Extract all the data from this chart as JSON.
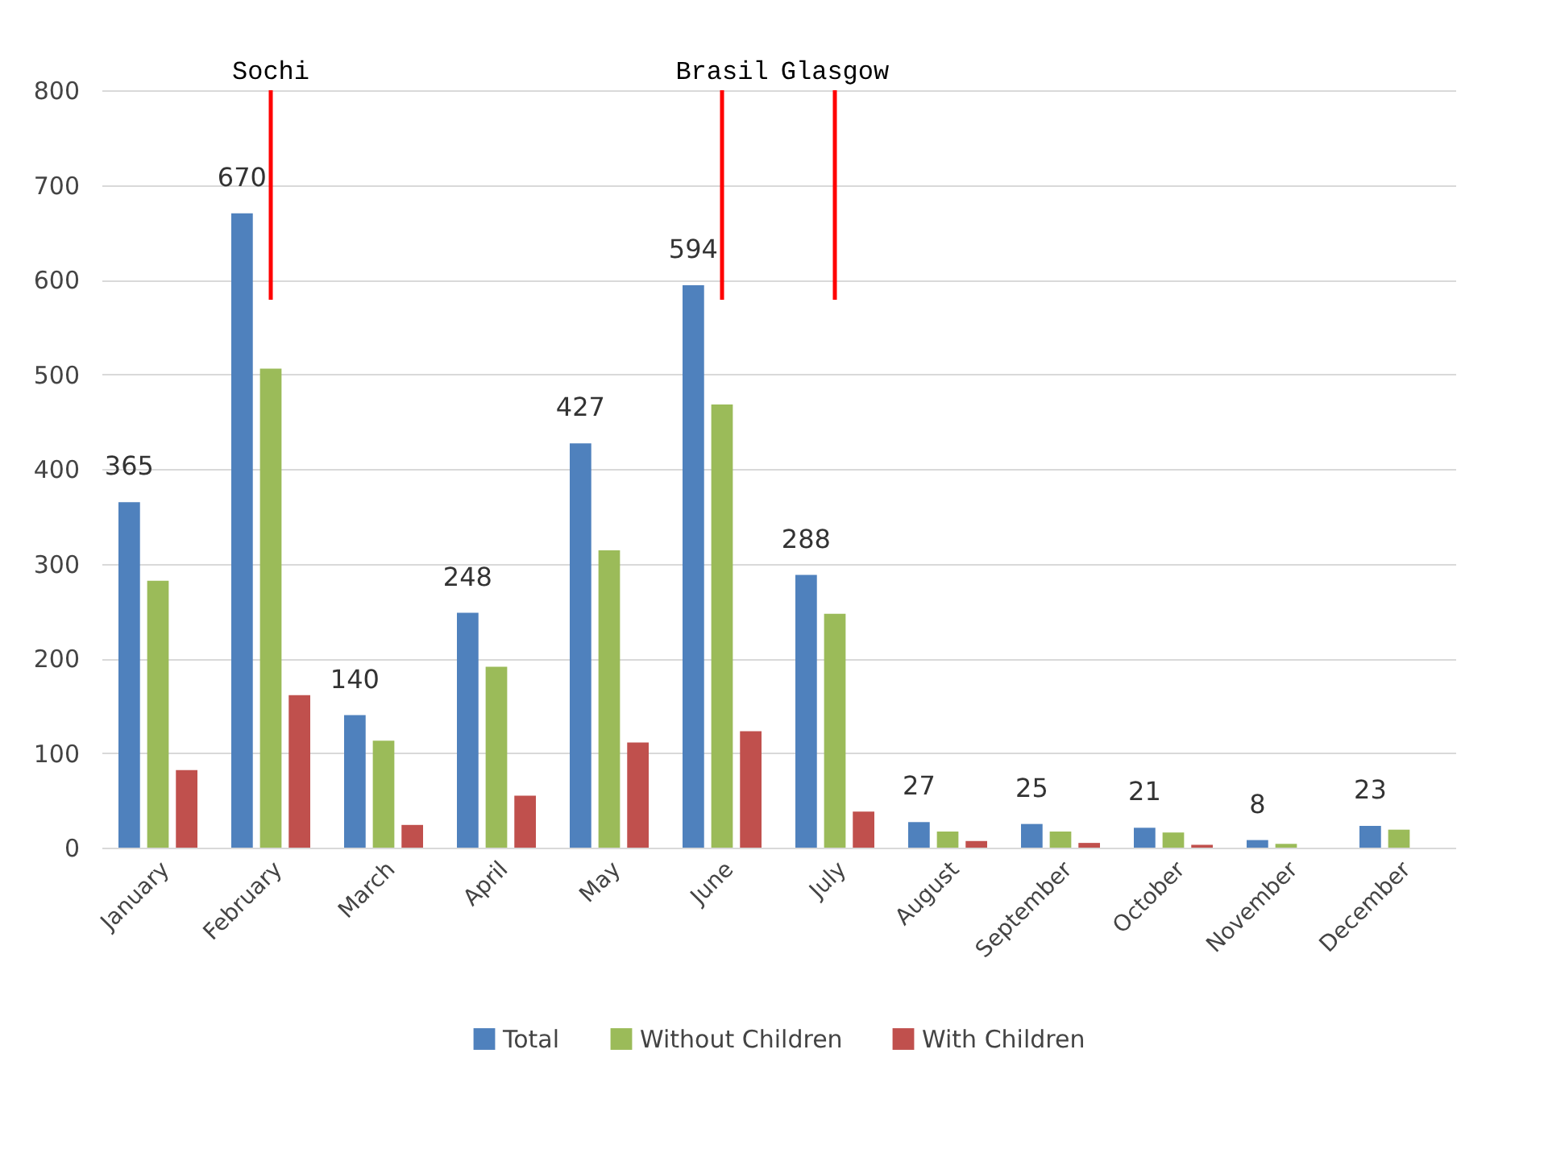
{
  "chart_data": {
    "type": "bar",
    "categories": [
      "January",
      "February",
      "March",
      "April",
      "May",
      "June",
      "July",
      "August",
      "September",
      "October",
      "November",
      "December"
    ],
    "series": [
      {
        "name": "Total",
        "color": "#4f81bd",
        "values": [
          365,
          670,
          140,
          248,
          427,
          594,
          288,
          27,
          25,
          21,
          8,
          23
        ],
        "value_labels": [
          "365",
          "670",
          "140",
          "248",
          "427",
          "594",
          "288",
          "27",
          "25",
          "21",
          "8",
          "23"
        ]
      },
      {
        "name": "Without Children",
        "color": "#9bbb59",
        "values": [
          282,
          506,
          113,
          191,
          314,
          468,
          247,
          17,
          17,
          16,
          4,
          19
        ]
      },
      {
        "name": "With Children",
        "color": "#c0504d",
        "values": [
          82,
          161,
          24,
          55,
          111,
          123,
          38,
          7,
          5,
          3,
          0,
          0
        ]
      }
    ],
    "ylim": [
      0,
      800
    ],
    "yticks": [
      0,
      100,
      200,
      300,
      400,
      500,
      600,
      700,
      800
    ],
    "grid": "y",
    "legend": "bottom",
    "ref_lines": [
      {
        "axis": "x",
        "value": "February",
        "label": "Sochi",
        "color": "#ff0000"
      },
      {
        "axis": "x",
        "value": "June",
        "label": "Brasil",
        "color": "#ff0000"
      },
      {
        "axis": "x",
        "value": "July",
        "label": "Glasgow",
        "color": "#ff0000"
      }
    ]
  }
}
